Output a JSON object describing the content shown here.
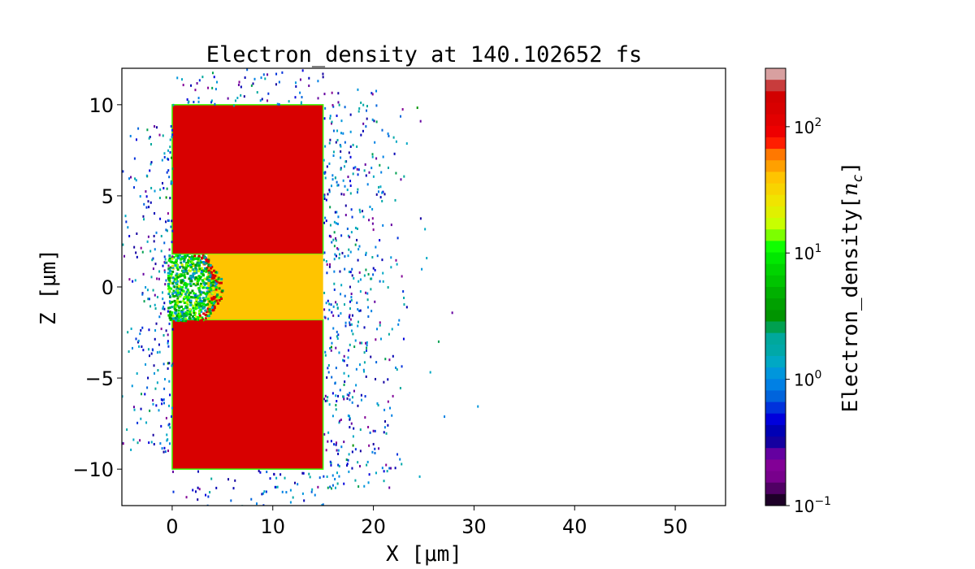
{
  "chart_data": {
    "type": "heatmap",
    "title": "Electron_density at 140.102652 fs",
    "xlabel": "X [μm]",
    "ylabel": "Z [μm]",
    "xlim": [
      -5,
      55
    ],
    "ylim": [
      -12,
      12
    ],
    "xticks": [
      0,
      10,
      20,
      30,
      40,
      50
    ],
    "yticks": [
      -10,
      -5,
      0,
      5,
      10
    ],
    "xtick_labels": [
      "0",
      "10",
      "20",
      "30",
      "40",
      "50"
    ],
    "ytick_labels": [
      "−10",
      "−5",
      "0",
      "5",
      "10"
    ],
    "colorbar": {
      "label": "Electron_density[n_c]",
      "scale": "log",
      "range": [
        0.1,
        290
      ],
      "tick_labels": [
        {
          "base": "10",
          "exp": "2",
          "value": 100
        },
        {
          "base": "10",
          "exp": "1",
          "value": 10
        },
        {
          "base": "10",
          "exp": "0",
          "value": 1
        },
        {
          "base": "10",
          "exp": "−1",
          "value": 0.1
        }
      ],
      "colors": [
        "#d8a0a0",
        "#c83c3c",
        "#d20000",
        "#d80000",
        "#e20000",
        "#ee0000",
        "#ff1e00",
        "#ff7800",
        "#ffa000",
        "#ffc400",
        "#f8d400",
        "#f0e400",
        "#e0f000",
        "#c8ff00",
        "#7cff00",
        "#10ff00",
        "#00e800",
        "#00d400",
        "#00c400",
        "#00b000",
        "#00a000",
        "#009400",
        "#00a050",
        "#00a89c",
        "#00a8a8",
        "#00a8c4",
        "#0096dc",
        "#0080e4",
        "#0064dc",
        "#0032dc",
        "#0000dc",
        "#0000b4",
        "#1400a0",
        "#6400a0",
        "#820096",
        "#78008c",
        "#500064",
        "#1e0028"
      ]
    },
    "regions": [
      {
        "name": "target-upper",
        "x": [
          0,
          15
        ],
        "z": [
          1.8,
          10
        ],
        "density": 150
      },
      {
        "name": "target-lower",
        "x": [
          0,
          15
        ],
        "z": [
          -10,
          -1.8
        ],
        "density": 150
      },
      {
        "name": "channel",
        "x": [
          3.5,
          15
        ],
        "z": [
          -1.8,
          1.8
        ],
        "density": 40
      },
      {
        "name": "ablated-front",
        "x": [
          -0.5,
          5
        ],
        "z": [
          -1.8,
          1.8
        ],
        "density": 8
      },
      {
        "name": "scattered-electrons",
        "x": [
          -5,
          23
        ],
        "z": [
          -12,
          12
        ],
        "density": 0.5
      }
    ]
  }
}
